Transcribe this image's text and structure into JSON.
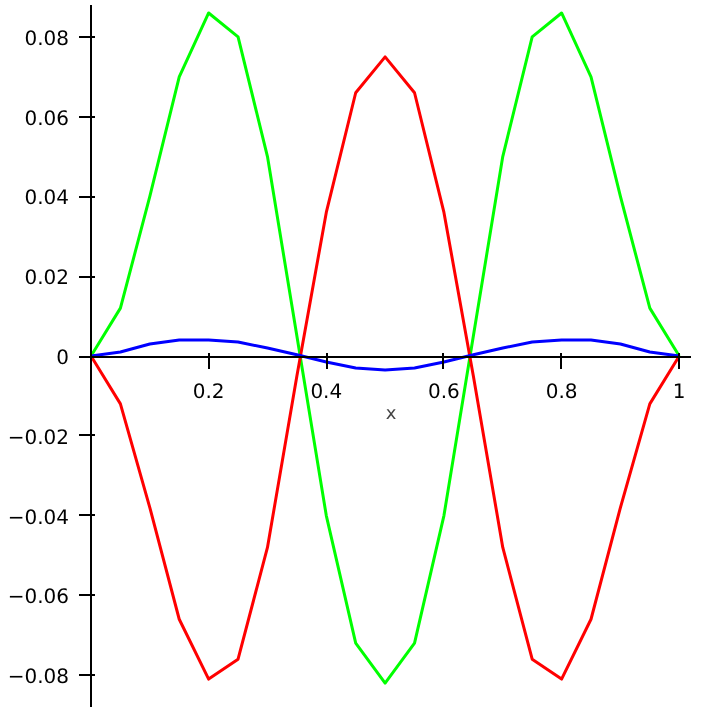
{
  "chart_data": {
    "type": "line",
    "xlabel": "x",
    "x": [
      0,
      0.05,
      0.1,
      0.15,
      0.2,
      0.25,
      0.3,
      0.35,
      0.4,
      0.45,
      0.5,
      0.55,
      0.6,
      0.65,
      0.7,
      0.75,
      0.8,
      0.85,
      0.9,
      0.95,
      1
    ],
    "series": [
      {
        "color": "#00ff00",
        "values": [
          0,
          0.012,
          0.04,
          0.07,
          0.086,
          0.08,
          0.05,
          0.005,
          -0.04,
          -0.072,
          -0.082,
          -0.072,
          -0.04,
          0.005,
          0.05,
          0.08,
          0.086,
          0.07,
          0.04,
          0.012,
          0
        ]
      },
      {
        "color": "#ff0000",
        "values": [
          0,
          -0.012,
          -0.038,
          -0.066,
          -0.081,
          -0.076,
          -0.048,
          -0.005,
          0.036,
          0.066,
          0.075,
          0.066,
          0.036,
          -0.005,
          -0.048,
          -0.076,
          -0.081,
          -0.066,
          -0.038,
          -0.012,
          0
        ]
      },
      {
        "color": "#0000ff",
        "values": [
          0,
          0.001,
          0.003,
          0.004,
          0.004,
          0.0035,
          0.002,
          0.0003,
          -0.0015,
          -0.003,
          -0.0035,
          -0.003,
          -0.0015,
          0.0003,
          0.002,
          0.0035,
          0.004,
          0.004,
          0.003,
          0.001,
          0
        ]
      }
    ],
    "xlim": [
      0,
      1.02
    ],
    "ylim": [
      -0.088,
      0.088
    ],
    "xticks": [
      0.2,
      0.4,
      0.6,
      0.8,
      1
    ],
    "yticks": [
      {
        "value": -0.08,
        "label": "−0.08"
      },
      {
        "value": -0.06,
        "label": "−0.06"
      },
      {
        "value": -0.04,
        "label": "−0.04"
      },
      {
        "value": -0.02,
        "label": "−0.02"
      },
      0,
      0.02,
      0.04,
      0.06,
      0.08
    ],
    "grid": false,
    "marker": "none",
    "line_style": "solid"
  }
}
